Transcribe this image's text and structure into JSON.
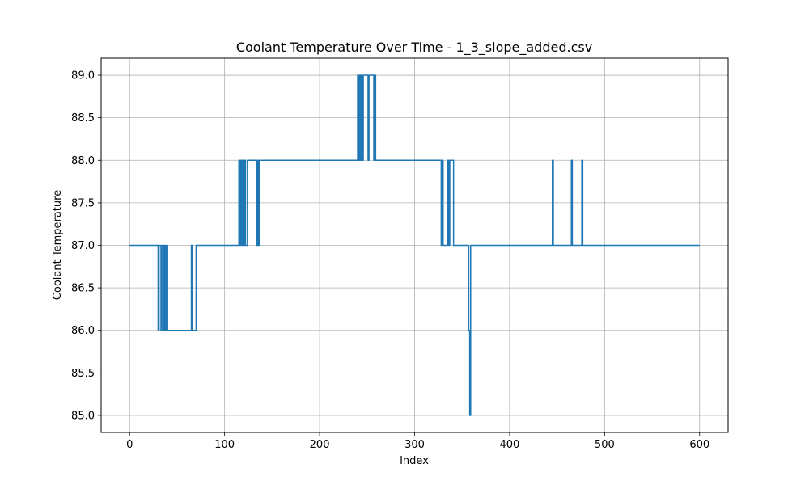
{
  "chart_data": {
    "type": "line",
    "title": "Coolant Temperature Over Time - 1_3_slope_added.csv",
    "xlabel": "Index",
    "ylabel": "Coolant Temperature",
    "xlim": [
      -30,
      630
    ],
    "ylim": [
      84.8,
      89.2
    ],
    "xticks": [
      0,
      100,
      200,
      300,
      400,
      500,
      600
    ],
    "yticks": [
      85.0,
      85.5,
      86.0,
      86.5,
      87.0,
      87.5,
      88.0,
      88.5,
      89.0
    ],
    "grid": true,
    "series": [
      {
        "color": "#1f77b4",
        "x": [
          0,
          30,
          30,
          31,
          31,
          33,
          33,
          34,
          34,
          36,
          36,
          37,
          37,
          38,
          38,
          39,
          39,
          40,
          40,
          65,
          65,
          66,
          66,
          70,
          70,
          71,
          71,
          115,
          115,
          116,
          116,
          117,
          117,
          118,
          118,
          119,
          119,
          120,
          120,
          121,
          121,
          122,
          122,
          124,
          124,
          125,
          125,
          134,
          134,
          135,
          135,
          136,
          136,
          137,
          137,
          240,
          240,
          241,
          241,
          242,
          242,
          243,
          243,
          244,
          244,
          245,
          245,
          246,
          246,
          251,
          251,
          252,
          252,
          257,
          257,
          258,
          258,
          259,
          259,
          328,
          328,
          329,
          329,
          330,
          330,
          335,
          335,
          336,
          336,
          337,
          337,
          340,
          340,
          341,
          341,
          344,
          344,
          357,
          357,
          358,
          358,
          359,
          359,
          360,
          360,
          445,
          445,
          446,
          446,
          465,
          465,
          466,
          466,
          476,
          476,
          477,
          477,
          478,
          478,
          600
        ],
        "y": [
          87,
          87,
          86,
          86,
          87,
          87,
          86,
          86,
          87,
          87,
          86,
          86,
          87,
          87,
          86,
          86,
          87,
          87,
          86,
          86,
          87,
          87,
          86,
          86,
          87,
          87,
          87,
          87,
          88,
          88,
          87,
          87,
          88,
          88,
          87,
          87,
          88,
          88,
          87,
          87,
          88,
          88,
          87,
          87,
          88,
          88,
          88,
          88,
          87,
          87,
          88,
          88,
          87,
          87,
          88,
          88,
          89,
          89,
          88,
          88,
          89,
          89,
          88,
          88,
          89,
          89,
          88,
          88,
          89,
          89,
          88,
          88,
          89,
          89,
          88,
          88,
          89,
          89,
          88,
          88,
          87,
          87,
          88,
          88,
          87,
          87,
          88,
          88,
          87,
          87,
          88,
          88,
          88,
          88,
          87,
          87,
          87,
          87,
          86,
          86,
          85,
          85,
          87,
          87,
          87,
          87,
          88,
          88,
          87,
          87,
          88,
          88,
          87,
          87,
          88,
          88,
          87,
          87,
          87,
          87
        ]
      }
    ]
  }
}
